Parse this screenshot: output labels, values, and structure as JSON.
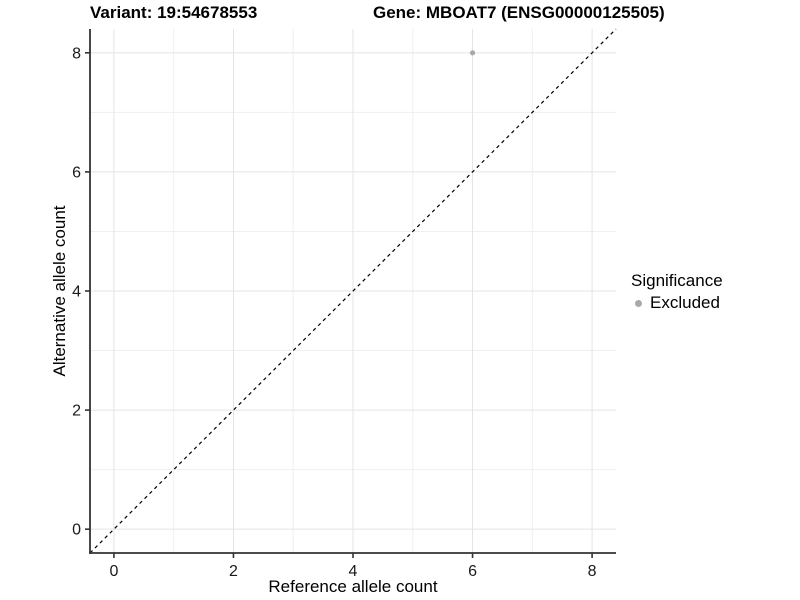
{
  "titles": {
    "variant": "Variant: 19:54678553",
    "gene": "Gene: MBOAT7 (ENSG00000125505)"
  },
  "legend": {
    "title": "Significance",
    "items": [
      {
        "label": "Excluded",
        "color": "#a9a9a9"
      }
    ]
  },
  "colors": {
    "background": "#ffffff",
    "grid_major": "#e4e4e4",
    "grid_minor": "#efefef",
    "axis_line": "#333333",
    "tick_mark": "#333333",
    "tick_label": "#1a1a1a",
    "reference_line": "#000000",
    "point": "#a9a9a9"
  },
  "chart_data": {
    "type": "scatter",
    "title": "Variant: 19:54678553   Gene: MBOAT7 (ENSG00000125505)",
    "xlabel": "Reference allele count",
    "ylabel": "Alternative allele count",
    "xlim": [
      -0.4,
      8.4
    ],
    "ylim": [
      -0.4,
      8.4
    ],
    "x_ticks": [
      0,
      2,
      4,
      6,
      8
    ],
    "y_ticks": [
      0,
      2,
      4,
      6,
      8
    ],
    "x_minor_ticks": [
      1,
      3,
      5,
      7
    ],
    "y_minor_ticks": [
      1,
      3,
      5,
      7
    ],
    "grid": "on",
    "legend_position": "right",
    "reference_line": {
      "type": "identity",
      "style": "dashed",
      "color": "#000000"
    },
    "series": [
      {
        "name": "Excluded",
        "color": "#a9a9a9",
        "points": [
          {
            "x": 6,
            "y": 8
          }
        ]
      }
    ]
  }
}
